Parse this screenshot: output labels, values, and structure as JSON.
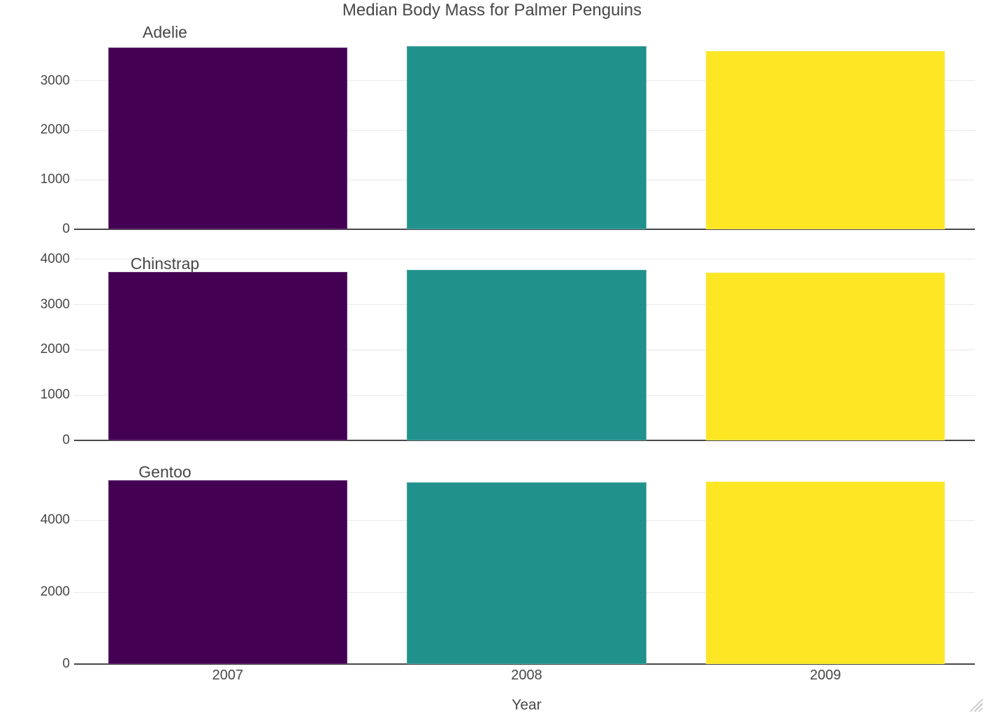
{
  "chart_data": {
    "type": "bar",
    "title": "Median Body Mass for Palmer Penguins",
    "xlabel": "Year",
    "ylabel": "",
    "categories": [
      "2007",
      "2008",
      "2009"
    ],
    "legend": "none",
    "grid": "horizontal",
    "facets": [
      {
        "label": "Adelie",
        "values": [
          3675,
          3700,
          3600
        ],
        "yticks": [
          0,
          1000,
          2000,
          3000
        ],
        "ylim": [
          0,
          3830
        ]
      },
      {
        "label": "Chinstrap",
        "values": [
          3725,
          3775,
          3700
        ],
        "yticks": [
          0,
          1000,
          2000,
          3000,
          4000
        ],
        "ylim": [
          0,
          4200
        ]
      },
      {
        "label": "Gentoo",
        "values": [
          5100,
          5050,
          5075
        ],
        "yticks": [
          0,
          2000,
          4000
        ],
        "ylim": [
          0,
          5670
        ]
      }
    ],
    "series_colors": [
      "#440154",
      "#21918c",
      "#fde725"
    ]
  },
  "colors": {
    "bar_2007": "#440154",
    "bar_2008": "#21918c",
    "bar_2009": "#fde725",
    "text": "#474747",
    "gridline": "#e9e9e9",
    "axis_line": "#474747",
    "background": "#ffffff"
  },
  "icons": {
    "resize_grip": "resize-grip"
  }
}
